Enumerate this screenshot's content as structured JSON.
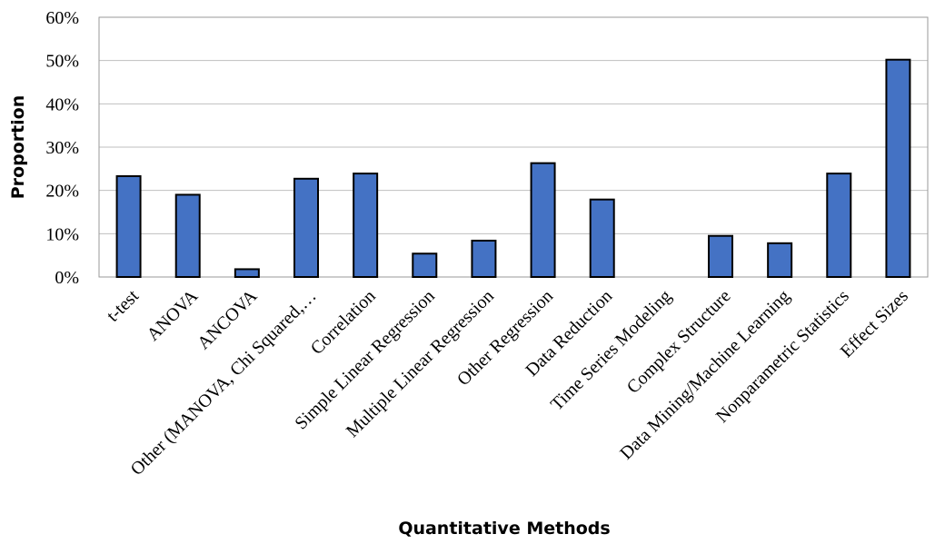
{
  "chart_data": {
    "type": "bar",
    "categories": [
      "t-test",
      "ANOVA",
      "ANCOVA",
      "Other (MANOVA, Chi Squared,…",
      "Correlation",
      "Simple Linear Regression",
      "Multiple Linear Regression",
      "Other Regression",
      "Data Reduction",
      "Time Series Modeling",
      "Complex Structure",
      "Data Mining/Machine Learning",
      "Nonparametric Statistics",
      "Effect Sizes"
    ],
    "values": [
      0.233,
      0.19,
      0.018,
      0.227,
      0.239,
      0.054,
      0.084,
      0.263,
      0.179,
      0.0,
      0.095,
      0.078,
      0.239,
      0.502
    ],
    "xlabel": "Quantitative Methods",
    "ylabel": "Proportion",
    "ylim": [
      0,
      0.6
    ],
    "yticks": [
      "0%",
      "10%",
      "20%",
      "30%",
      "40%",
      "50%",
      "60%"
    ],
    "bar_color": "#4472c4",
    "grid": true
  }
}
